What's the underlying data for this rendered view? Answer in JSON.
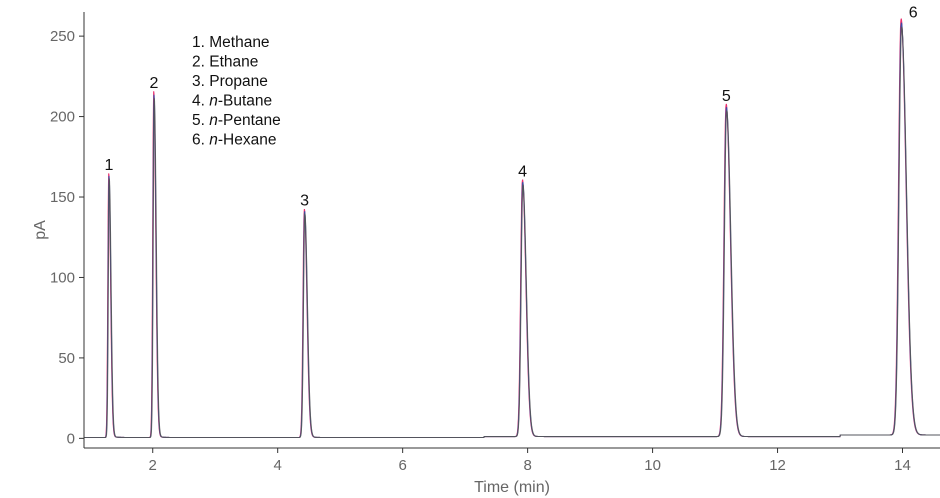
{
  "chart_data": {
    "type": "line",
    "title": "",
    "xlabel": "Time (min)",
    "ylabel": "pA",
    "xlim": [
      0.9,
      14.6
    ],
    "ylim": [
      -6,
      265
    ],
    "x_ticks": [
      2,
      4,
      6,
      8,
      10,
      12,
      14
    ],
    "y_ticks": [
      0,
      50,
      100,
      150,
      200,
      250
    ],
    "grid": false,
    "legend_position": "top-left",
    "legend": [
      {
        "num": "1. ",
        "prefix": "",
        "name": "Methane"
      },
      {
        "num": "2. ",
        "prefix": "",
        "name": "Ethane"
      },
      {
        "num": "3. ",
        "prefix": "",
        "name": "Propane"
      },
      {
        "num": "4. ",
        "prefix": "n",
        "name": "-Butane"
      },
      {
        "num": "5. ",
        "prefix": "n",
        "name": "-Pentane"
      },
      {
        "num": "6. ",
        "prefix": "n",
        "name": "-Hexane"
      }
    ],
    "peaks": [
      {
        "label": "1",
        "time": 1.3,
        "height": 163
      },
      {
        "label": "2",
        "time": 2.02,
        "height": 214
      },
      {
        "label": "3",
        "time": 4.43,
        "height": 141
      },
      {
        "label": "4",
        "time": 7.92,
        "height": 159
      },
      {
        "label": "5",
        "time": 11.18,
        "height": 206
      },
      {
        "label": "6",
        "time": 13.98,
        "height": 258
      }
    ],
    "series_colors": [
      "#e8175d",
      "#2b4ea8",
      "#555555"
    ]
  }
}
